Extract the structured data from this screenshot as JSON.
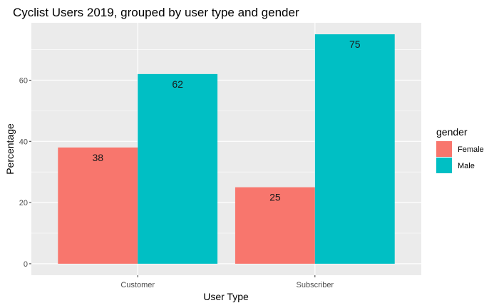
{
  "chart_data": {
    "type": "bar",
    "title": "Cyclist Users 2019, grouped by user type and gender",
    "xlabel": "User Type",
    "ylabel": "Percentage",
    "categories": [
      "Customer",
      "Subscriber"
    ],
    "series": [
      {
        "name": "Female",
        "values": [
          38,
          25
        ],
        "color": "#F8766D"
      },
      {
        "name": "Male",
        "values": [
          62,
          75
        ],
        "color": "#00BFC4"
      }
    ],
    "ylim": [
      -3.75,
      78.75
    ],
    "yticks": [
      0,
      20,
      40,
      60
    ],
    "grid": true,
    "legend": {
      "title": "gender",
      "position": "right"
    },
    "panel_background": "#EBEBEB"
  }
}
